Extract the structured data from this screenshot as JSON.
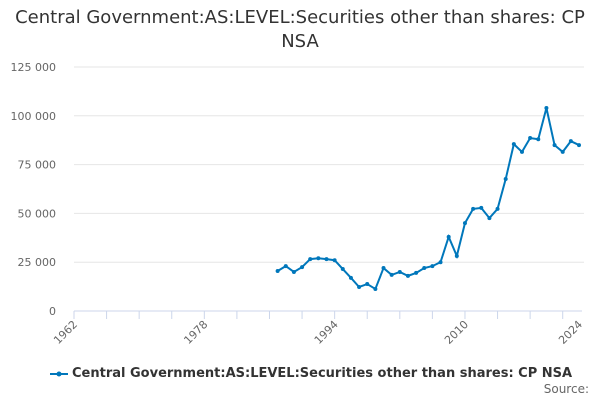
{
  "chart_data": {
    "type": "line",
    "title": "Central Government:AS:LEVEL:Securities other than shares: CP NSA",
    "xlabel": "",
    "ylabel": "",
    "xlim": [
      1962,
      2024
    ],
    "ylim": [
      0,
      125000
    ],
    "x_ticks": [
      "1962",
      "1978",
      "1994",
      "2010",
      "2024"
    ],
    "y_ticks": [
      "0",
      "25 000",
      "50 000",
      "75 000",
      "100 000",
      "125 000"
    ],
    "grid": true,
    "legend_position": "bottom",
    "series": [
      {
        "name": "Central Government:AS:LEVEL:Securities other than shares: CP NSA",
        "color": "#0077bb",
        "x": [
          1987,
          1988,
          1989,
          1990,
          1991,
          1992,
          1993,
          1994,
          1995,
          1996,
          1997,
          1998,
          1999,
          2000,
          2001,
          2002,
          2003,
          2004,
          2005,
          2006,
          2007,
          2008,
          2009,
          2010,
          2011,
          2012,
          2013,
          2014,
          2015,
          2016,
          2017,
          2018,
          2019,
          2020,
          2021,
          2022,
          2023,
          2024
        ],
        "values": [
          20500,
          23000,
          20000,
          22500,
          26600,
          27000,
          26600,
          26000,
          21500,
          17000,
          12300,
          13800,
          11300,
          22000,
          18500,
          20000,
          18000,
          19500,
          22000,
          23000,
          25000,
          38000,
          28200,
          45000,
          52300,
          52800,
          47600,
          52300,
          67600,
          85500,
          81500,
          88600,
          88000,
          104000,
          85000,
          81500,
          87000,
          85000
        ]
      }
    ]
  },
  "source_label": "Source:"
}
